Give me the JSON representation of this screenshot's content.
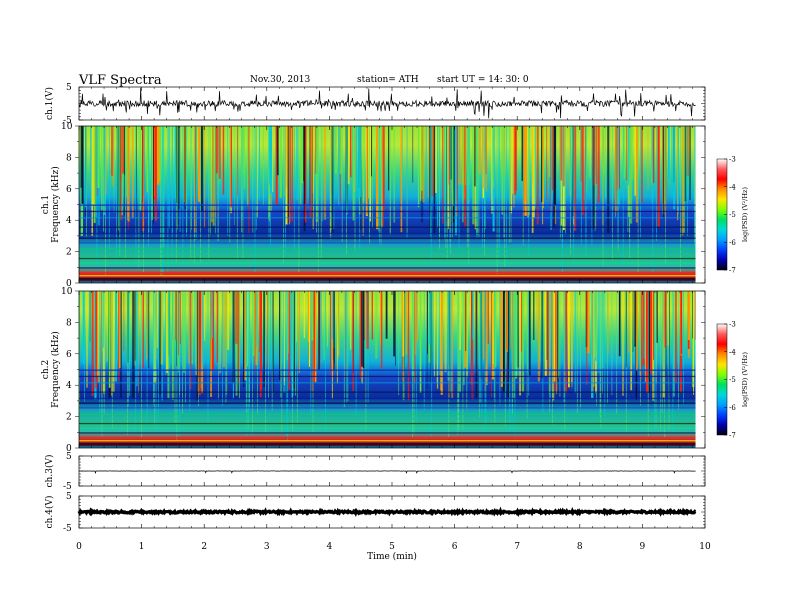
{
  "header": {
    "title": "VLF  Spectra",
    "date": "Nov.30, 2013",
    "station": "station= ATH",
    "start": "start  UT  =   14: 30: 0"
  },
  "colorbar": {
    "label": "log(PSD) (V²/Hz)",
    "ticks": [
      "-3",
      "-4",
      "-5",
      "-6",
      "-7"
    ],
    "colors": [
      "#ffffff",
      "#ff5a5a",
      "#ff0000",
      "#ff8c00",
      "#ffe400",
      "#7fff00",
      "#00e060",
      "#00d8d8",
      "#00a0ff",
      "#0040ff",
      "#0000b0",
      "#000010"
    ]
  },
  "panels": [
    {
      "id": "ch1",
      "label": "ch.1(V)",
      "yticks": [
        "5",
        "-5"
      ]
    },
    {
      "id": "spec1",
      "label": "ch.1",
      "sublabel": "Frequency  (kHz)",
      "yticks": [
        "10",
        "8",
        "6",
        "4",
        "2",
        "0"
      ]
    },
    {
      "id": "spec2",
      "label": "ch.2",
      "sublabel": "Frequency  (kHz)",
      "yticks": [
        "10",
        "8",
        "6",
        "4",
        "2",
        "0"
      ]
    },
    {
      "id": "ch3",
      "label": "ch.3(V)",
      "yticks": [
        "5",
        "-5"
      ]
    },
    {
      "id": "ch4",
      "label": "ch.4(V)",
      "yticks": [
        "5",
        "-5"
      ]
    }
  ],
  "xaxis": {
    "label": "Time  (min)",
    "ticks": [
      "0",
      "1",
      "2",
      "3",
      "4",
      "5",
      "6",
      "7",
      "8",
      "9",
      "10"
    ]
  },
  "chart_data": {
    "type": "heatmap",
    "title": "VLF  Spectra",
    "xlabel": "Time  (min)",
    "xlim": [
      0,
      10
    ],
    "data_end_min": 9.85,
    "panels": [
      {
        "name": "ch.1(V)",
        "kind": "waveform",
        "ylim": [
          -5,
          5
        ],
        "approx_level": 0,
        "approx_amplitude": 1.5
      },
      {
        "name": "ch.1",
        "kind": "spectrogram",
        "ylabel": "Frequency  (kHz)",
        "ylim": [
          0,
          10
        ],
        "zlabel": "log(PSD) (V²/Hz)",
        "zlim": [
          -7,
          -3
        ]
      },
      {
        "name": "ch.2",
        "kind": "spectrogram",
        "ylabel": "Frequency  (kHz)",
        "ylim": [
          0,
          10
        ],
        "zlabel": "log(PSD) (V²/Hz)",
        "zlim": [
          -7,
          -3
        ]
      },
      {
        "name": "ch.3(V)",
        "kind": "waveform",
        "ylim": [
          -5,
          5
        ],
        "approx_level": 0,
        "approx_amplitude": 0.05
      },
      {
        "name": "ch.4(V)",
        "kind": "waveform",
        "ylim": [
          -5,
          5
        ],
        "approx_level": 0,
        "approx_amplitude": 0.3
      }
    ]
  }
}
